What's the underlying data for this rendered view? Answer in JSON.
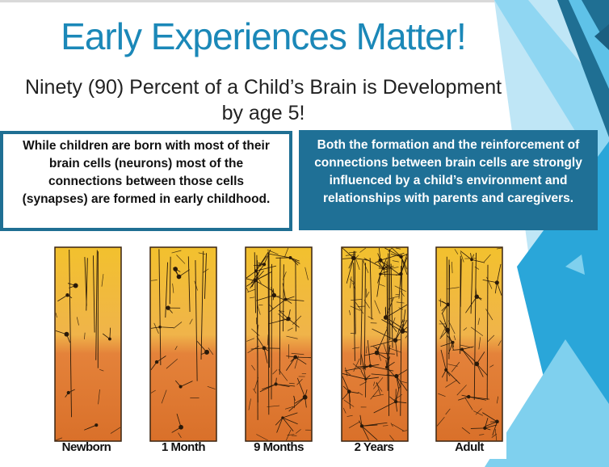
{
  "slide": {
    "title": "Early Experiences Matter!",
    "subtitle_line1": "Ninety (90) Percent of a Child’s Brain is Development",
    "subtitle_line2": "by age 5!",
    "left_box_text": "While children are born with most of their brain cells (neurons) most of the connections between those cells (synapses) are formed in early childhood.",
    "right_box_text": "Both the formation and the reinforcement of connections between brain cells are strongly influenced by a child’s environment and relationships with parents and caregivers."
  },
  "panels": [
    {
      "label": "Newborn",
      "density": 0.12
    },
    {
      "label": "1 Month",
      "density": 0.25
    },
    {
      "label": "9 Months",
      "density": 0.7
    },
    {
      "label": "2 Years",
      "density": 1.0
    },
    {
      "label": "Adult",
      "density": 0.55
    }
  ],
  "colors": {
    "title": "#1b88b8",
    "box_border": "#1f6f93",
    "box_fill": "#1f7096",
    "panel_top": "#f2c12e",
    "panel_bottom": "#d9702a",
    "neuron": "#2a1a0a",
    "accent_light": "#7fd0ee",
    "accent_mid": "#2aa6d9",
    "accent_dark": "#1f6f93"
  }
}
